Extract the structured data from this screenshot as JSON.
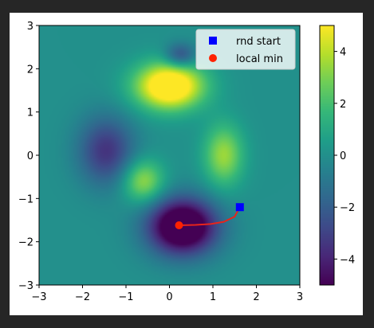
{
  "chart_data": {
    "type": "heatmap",
    "title": "",
    "xlabel": "",
    "ylabel": "",
    "xlim": [
      -3,
      3
    ],
    "ylim": [
      -3,
      3
    ],
    "grid": false,
    "x_ticks": [
      -3,
      -2,
      -1,
      0,
      1,
      2,
      3
    ],
    "y_ticks": [
      -3,
      -2,
      -1,
      0,
      1,
      2,
      3
    ],
    "colorbar": {
      "range": [
        -5,
        5
      ],
      "ticks": [
        -4,
        -2,
        0,
        2,
        4
      ],
      "colormap": "viridis"
    },
    "peaks": [
      {
        "x": 0.0,
        "y": 1.6,
        "amp": 7.0,
        "sx": 0.55,
        "sy": 0.38
      },
      {
        "x": 0.3,
        "y": -1.65,
        "amp": -7.5,
        "sx": 0.55,
        "sy": 0.45
      },
      {
        "x": -1.45,
        "y": 0.1,
        "amp": -3.5,
        "sx": 0.45,
        "sy": 0.55
      },
      {
        "x": 1.25,
        "y": 0.0,
        "amp": 3.5,
        "sx": 0.32,
        "sy": 0.5
      },
      {
        "x": -0.6,
        "y": -0.6,
        "amp": 3.5,
        "sx": 0.33,
        "sy": 0.35
      },
      {
        "x": 0.25,
        "y": 2.3,
        "amp": -3.0,
        "sx": 0.25,
        "sy": 0.2
      }
    ],
    "legend": {
      "placement": "upper-right",
      "entries": [
        {
          "label": "rnd start",
          "marker": "square",
          "color": "#0000ff"
        },
        {
          "label": "local min",
          "marker": "circle",
          "color": "#ff2200"
        }
      ]
    },
    "start_point": {
      "x": 1.62,
      "y": -1.2
    },
    "min_point": {
      "x": 0.22,
      "y": -1.62
    },
    "path_color": "#e8241b",
    "path": [
      {
        "x": 1.62,
        "y": -1.2
      },
      {
        "x": 1.5,
        "y": -1.42
      },
      {
        "x": 1.25,
        "y": -1.54
      },
      {
        "x": 0.95,
        "y": -1.59
      },
      {
        "x": 0.6,
        "y": -1.61
      },
      {
        "x": 0.22,
        "y": -1.62
      }
    ]
  }
}
